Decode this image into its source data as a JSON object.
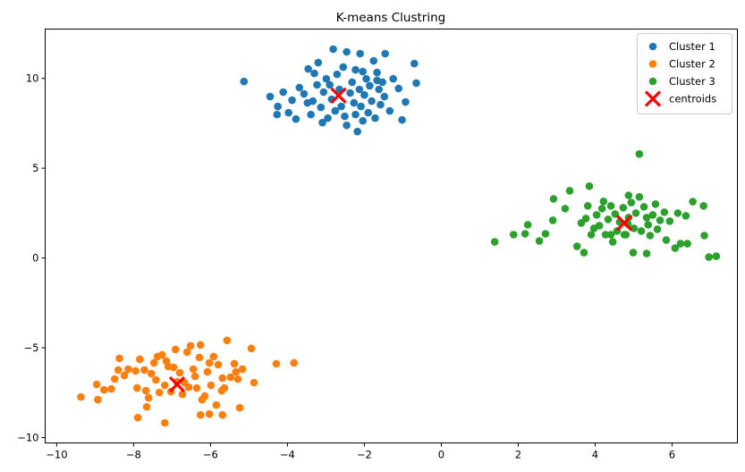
{
  "chart_data": {
    "type": "scatter",
    "title": "K-means Clustring",
    "xlabel": "",
    "ylabel": "",
    "xlim": [
      -10.3,
      7.7
    ],
    "ylim": [
      -10.3,
      12.75
    ],
    "xticks": [
      -10,
      -8,
      -6,
      -4,
      -2,
      0,
      2,
      4,
      6
    ],
    "yticks": [
      -10,
      -5,
      0,
      5,
      10
    ],
    "grid": false,
    "legend_position": "upper right",
    "series": [
      {
        "name": "Cluster 1",
        "color": "#1f77b4",
        "marker": "circle",
        "points": [
          [
            -5.13,
            9.83
          ],
          [
            -4.45,
            8.99
          ],
          [
            -4.25,
            8.44
          ],
          [
            -4.11,
            9.24
          ],
          [
            -3.97,
            8.09
          ],
          [
            -3.88,
            8.79
          ],
          [
            -3.78,
            7.74
          ],
          [
            -3.69,
            9.49
          ],
          [
            -3.57,
            9.14
          ],
          [
            -3.46,
            10.53
          ],
          [
            -3.39,
            7.99
          ],
          [
            -3.34,
            8.74
          ],
          [
            -3.23,
            9.64
          ],
          [
            -3.2,
            10.88
          ],
          [
            -3.13,
            8.39
          ],
          [
            -3.06,
            9.24
          ],
          [
            -2.99,
            9.98
          ],
          [
            -2.95,
            7.79
          ],
          [
            -2.9,
            9.64
          ],
          [
            -2.85,
            8.84
          ],
          [
            -2.81,
            11.63
          ],
          [
            -2.76,
            8.19
          ],
          [
            -2.71,
            10.23
          ],
          [
            -2.65,
            9.39
          ],
          [
            -2.6,
            8.44
          ],
          [
            -2.55,
            10.63
          ],
          [
            -2.51,
            7.89
          ],
          [
            -2.46,
            7.39
          ],
          [
            -2.37,
            9.19
          ],
          [
            -2.32,
            9.79
          ],
          [
            -2.27,
            8.64
          ],
          [
            -2.23,
            10.48
          ],
          [
            -2.18,
            7.04
          ],
          [
            -2.13,
            9.39
          ],
          [
            -2.09,
            8.44
          ],
          [
            -2.04,
            7.64
          ],
          [
            -2.0,
            9.08
          ],
          [
            -1.95,
            9.98
          ],
          [
            -1.9,
            8.09
          ],
          [
            -1.86,
            9.59
          ],
          [
            -1.81,
            8.74
          ],
          [
            -1.76,
            10.98
          ],
          [
            -1.72,
            7.79
          ],
          [
            -1.67,
            10.33
          ],
          [
            -1.62,
            9.39
          ],
          [
            -1.58,
            8.54
          ],
          [
            -1.53,
            9.79
          ],
          [
            -1.48,
            8.99
          ],
          [
            -1.34,
            8.19
          ],
          [
            -1.25,
            9.98
          ],
          [
            -1.11,
            9.44
          ],
          [
            -0.93,
            8.69
          ],
          [
            -0.7,
            10.83
          ],
          [
            -0.65,
            9.74
          ],
          [
            -1.02,
            7.69
          ],
          [
            -1.46,
            11.38
          ],
          [
            -2.11,
            11.38
          ],
          [
            -2.46,
            11.48
          ],
          [
            -3.09,
            7.54
          ],
          [
            -3.48,
            8.64
          ],
          [
            -4.27,
            7.99
          ],
          [
            -3.3,
            10.28
          ],
          [
            -1.67,
            9.89
          ],
          [
            -2.04,
            10.38
          ],
          [
            -2.23,
            7.99
          ]
        ]
      },
      {
        "name": "Cluster 2",
        "color": "#ff7f0e",
        "marker": "circle",
        "points": [
          [
            -9.37,
            -7.74
          ],
          [
            -8.93,
            -7.89
          ],
          [
            -8.96,
            -7.04
          ],
          [
            -8.77,
            -7.34
          ],
          [
            -8.58,
            -7.29
          ],
          [
            -8.49,
            -6.74
          ],
          [
            -8.4,
            -6.24
          ],
          [
            -8.37,
            -5.59
          ],
          [
            -8.24,
            -6.54
          ],
          [
            -8.14,
            -6.19
          ],
          [
            -7.95,
            -6.29
          ],
          [
            -7.91,
            -7.24
          ],
          [
            -7.89,
            -8.89
          ],
          [
            -7.84,
            -5.64
          ],
          [
            -7.72,
            -6.24
          ],
          [
            -7.68,
            -7.39
          ],
          [
            -7.61,
            -7.79
          ],
          [
            -7.54,
            -6.44
          ],
          [
            -7.47,
            -5.84
          ],
          [
            -7.42,
            -6.79
          ],
          [
            -7.38,
            -5.49
          ],
          [
            -7.33,
            -7.49
          ],
          [
            -7.26,
            -5.39
          ],
          [
            -7.19,
            -7.09
          ],
          [
            -7.15,
            -5.74
          ],
          [
            -7.1,
            -6.04
          ],
          [
            -7.03,
            -7.44
          ],
          [
            -6.96,
            -6.09
          ],
          [
            -6.91,
            -5.09
          ],
          [
            -6.87,
            -6.89
          ],
          [
            -6.8,
            -6.39
          ],
          [
            -6.73,
            -7.59
          ],
          [
            -6.68,
            -6.94
          ],
          [
            -6.61,
            -5.24
          ],
          [
            -6.57,
            -7.19
          ],
          [
            -6.52,
            -4.89
          ],
          [
            -6.45,
            -6.19
          ],
          [
            -6.4,
            -6.59
          ],
          [
            -6.36,
            -7.24
          ],
          [
            -6.29,
            -5.54
          ],
          [
            -6.26,
            -4.84
          ],
          [
            -6.22,
            -7.89
          ],
          [
            -6.15,
            -7.69
          ],
          [
            -6.08,
            -6.34
          ],
          [
            -6.03,
            -5.84
          ],
          [
            -5.99,
            -7.09
          ],
          [
            -5.92,
            -5.49
          ],
          [
            -5.85,
            -8.19
          ],
          [
            -5.8,
            -5.94
          ],
          [
            -5.71,
            -7.39
          ],
          [
            -5.69,
            -6.69
          ],
          [
            -5.64,
            -7.24
          ],
          [
            -5.57,
            -4.59
          ],
          [
            -5.48,
            -6.64
          ],
          [
            -5.38,
            -5.89
          ],
          [
            -5.34,
            -6.34
          ],
          [
            -5.29,
            -6.74
          ],
          [
            -5.24,
            -8.34
          ],
          [
            -5.17,
            -6.19
          ],
          [
            -4.94,
            -5.04
          ],
          [
            -4.87,
            -6.94
          ],
          [
            -4.29,
            -5.89
          ],
          [
            -3.83,
            -5.84
          ],
          [
            -5.69,
            -8.74
          ],
          [
            -7.19,
            -9.18
          ],
          [
            -7.66,
            -8.29
          ],
          [
            -6.03,
            -8.69
          ],
          [
            -6.26,
            -8.74
          ]
        ]
      },
      {
        "name": "Cluster 3",
        "color": "#2ca02c",
        "marker": "circle",
        "points": [
          [
            1.39,
            0.9
          ],
          [
            1.88,
            1.3
          ],
          [
            2.18,
            1.35
          ],
          [
            2.25,
            1.85
          ],
          [
            2.55,
            0.95
          ],
          [
            2.71,
            1.35
          ],
          [
            2.9,
            2.1
          ],
          [
            2.92,
            3.29
          ],
          [
            3.22,
            2.75
          ],
          [
            3.34,
            3.74
          ],
          [
            3.53,
            0.65
          ],
          [
            3.64,
            1.95
          ],
          [
            3.76,
            2.2
          ],
          [
            3.81,
            2.9
          ],
          [
            3.85,
            4.0
          ],
          [
            3.9,
            1.3
          ],
          [
            3.97,
            1.65
          ],
          [
            4.04,
            2.4
          ],
          [
            4.11,
            1.8
          ],
          [
            4.18,
            2.75
          ],
          [
            4.22,
            3.15
          ],
          [
            4.27,
            1.3
          ],
          [
            4.34,
            2.15
          ],
          [
            4.41,
            2.9
          ],
          [
            4.46,
            0.9
          ],
          [
            4.52,
            2.45
          ],
          [
            4.57,
            1.5
          ],
          [
            4.64,
            2.0
          ],
          [
            4.73,
            2.8
          ],
          [
            4.8,
            1.3
          ],
          [
            4.87,
            2.25
          ],
          [
            4.94,
            3.09
          ],
          [
            5.01,
            1.65
          ],
          [
            5.06,
            2.5
          ],
          [
            5.15,
            3.4
          ],
          [
            5.2,
            1.5
          ],
          [
            5.27,
            2.85
          ],
          [
            5.34,
            2.25
          ],
          [
            5.38,
            1.85
          ],
          [
            5.43,
            1.25
          ],
          [
            5.5,
            2.4
          ],
          [
            5.57,
            3.0
          ],
          [
            5.62,
            1.6
          ],
          [
            5.69,
            2.1
          ],
          [
            5.8,
            2.55
          ],
          [
            5.85,
            1.0
          ],
          [
            5.94,
            2.05
          ],
          [
            6.08,
            0.55
          ],
          [
            6.15,
            2.5
          ],
          [
            6.22,
            0.8
          ],
          [
            6.36,
            2.35
          ],
          [
            6.4,
            0.8
          ],
          [
            6.54,
            3.14
          ],
          [
            6.82,
            2.9
          ],
          [
            6.84,
            1.25
          ],
          [
            6.96,
            0.05
          ],
          [
            7.15,
            0.1
          ],
          [
            5.15,
            5.79
          ],
          [
            4.85,
            1.9
          ],
          [
            4.76,
            1.3
          ],
          [
            4.41,
            1.3
          ],
          [
            4.99,
            0.3
          ],
          [
            5.34,
            0.25
          ],
          [
            3.71,
            0.3
          ],
          [
            4.87,
            3.49
          ]
        ]
      }
    ],
    "centroids": {
      "name": "centroids",
      "color": "#ff0000",
      "marker": "x",
      "points": [
        [
          -2.67,
          9.05
        ],
        [
          -6.87,
          -7.04
        ],
        [
          4.76,
          1.95
        ]
      ]
    }
  },
  "legend": {
    "items": [
      {
        "label": "Cluster 1",
        "color": "#1f77b4",
        "marker": "circle"
      },
      {
        "label": "Cluster 2",
        "color": "#ff7f0e",
        "marker": "circle"
      },
      {
        "label": "Cluster 3",
        "color": "#2ca02c",
        "marker": "circle"
      },
      {
        "label": "centroids",
        "color": "#ff0000",
        "marker": "x"
      }
    ]
  }
}
